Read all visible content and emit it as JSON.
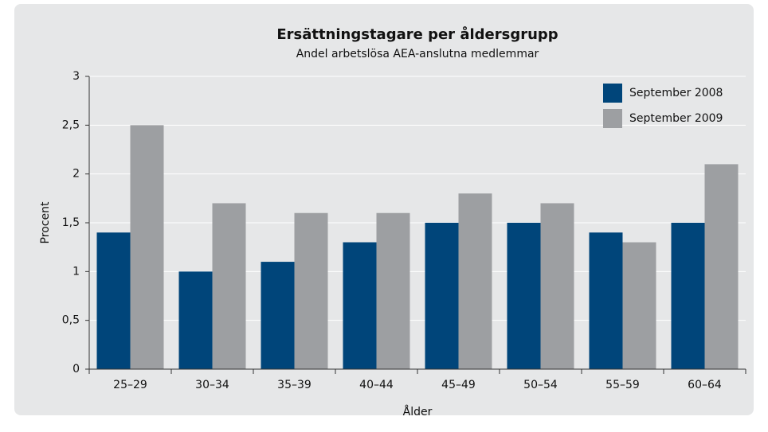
{
  "chart_data": {
    "type": "bar",
    "title": "Ersättningstagare per åldersgrupp",
    "subtitle": "Andel arbetslösa AEA-anslutna medlemmar",
    "x_label": "Ålder",
    "y_label": "Procent",
    "categories": [
      "25–29",
      "30–34",
      "35–39",
      "40–44",
      "45–49",
      "50–54",
      "55–59",
      "60–64"
    ],
    "series": [
      {
        "name": "September 2008",
        "color": "#00457a",
        "values": [
          1.4,
          1.0,
          1.1,
          1.3,
          1.5,
          1.5,
          1.4,
          1.5
        ]
      },
      {
        "name": "September 2009",
        "color": "#9d9fa2",
        "values": [
          2.5,
          1.7,
          1.6,
          1.6,
          1.8,
          1.7,
          1.3,
          2.1
        ]
      }
    ],
    "ylim": [
      0,
      3
    ],
    "yticks": [
      0,
      {
        "value": 0.5,
        "label": "0,5"
      },
      1,
      {
        "value": 1.5,
        "label": "1,5"
      },
      2,
      {
        "value": 2.5,
        "label": "2,5"
      },
      3
    ],
    "grid": true,
    "legend": "top-right"
  }
}
